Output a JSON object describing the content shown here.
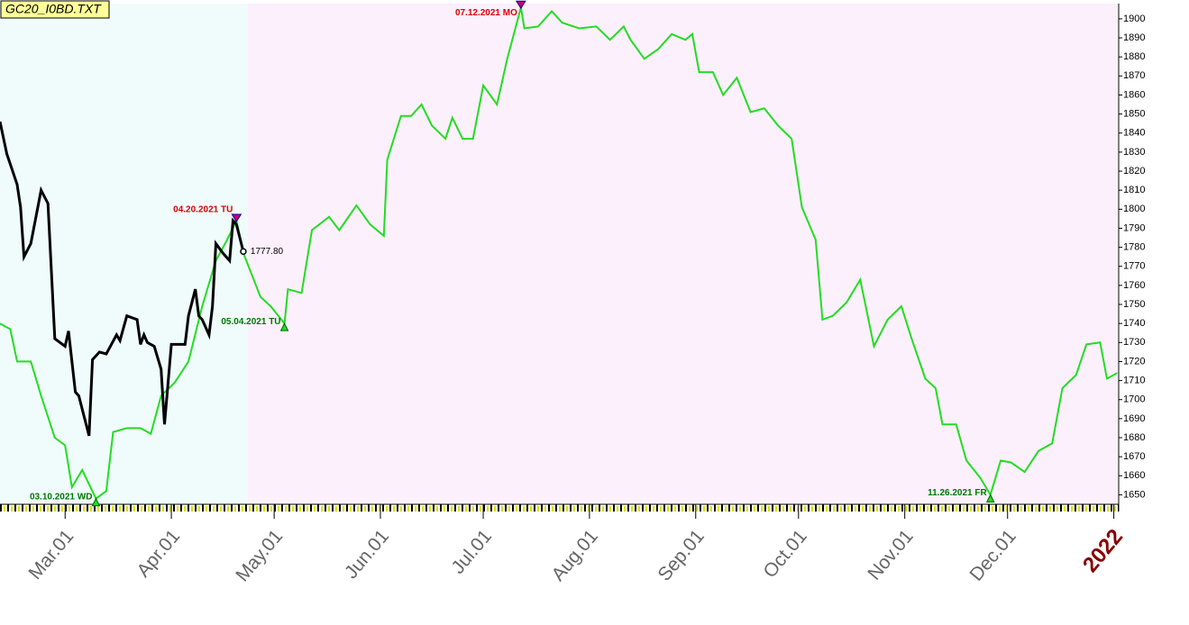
{
  "chart_data": {
    "type": "line",
    "title": "GC20_I0BD.TXT",
    "xlim": [
      "2021-02-10",
      "2022-01-04"
    ],
    "ylim": [
      1645,
      1908
    ],
    "yticks": [
      1650,
      1660,
      1670,
      1680,
      1690,
      1700,
      1710,
      1720,
      1730,
      1740,
      1750,
      1760,
      1770,
      1780,
      1790,
      1800,
      1810,
      1820,
      1830,
      1840,
      1850,
      1860,
      1870,
      1880,
      1890,
      1900
    ],
    "xticks": [
      {
        "value": "2021-03-01",
        "label": "Mar.01"
      },
      {
        "value": "2021-04-01",
        "label": "Apr.01"
      },
      {
        "value": "2021-05-01",
        "label": "May.01"
      },
      {
        "value": "2021-06-01",
        "label": "Jun.01"
      },
      {
        "value": "2021-07-01",
        "label": "Jul.01"
      },
      {
        "value": "2021-08-01",
        "label": "Aug.01"
      },
      {
        "value": "2021-09-01",
        "label": "Sep.01"
      },
      {
        "value": "2021-10-01",
        "label": "Oct.01"
      },
      {
        "value": "2021-11-01",
        "label": "Nov.01"
      },
      {
        "value": "2021-12-01",
        "label": "Dec.01"
      },
      {
        "value": "2022-01-01",
        "label": "2022"
      }
    ],
    "series": [
      {
        "color": "#22dd22",
        "x": [
          "2021-02-10",
          "2021-02-13",
          "2021-02-15",
          "2021-02-19",
          "2021-02-22",
          "2021-02-26",
          "2021-03-01",
          "2021-03-03",
          "2021-03-06",
          "2021-03-10",
          "2021-03-13",
          "2021-03-15",
          "2021-03-19",
          "2021-03-23",
          "2021-03-26",
          "2021-03-29",
          "2021-04-02",
          "2021-04-06",
          "2021-04-10",
          "2021-04-14",
          "2021-04-17",
          "2021-04-20",
          "2021-04-22",
          "2021-04-27",
          "2021-04-30",
          "2021-05-04",
          "2021-05-05",
          "2021-05-09",
          "2021-05-12",
          "2021-05-17",
          "2021-05-20",
          "2021-05-25",
          "2021-05-29",
          "2021-06-02",
          "2021-06-03",
          "2021-06-07",
          "2021-06-10",
          "2021-06-13",
          "2021-06-16",
          "2021-06-20",
          "2021-06-22",
          "2021-06-25",
          "2021-06-28",
          "2021-07-01",
          "2021-07-05",
          "2021-07-08",
          "2021-07-12",
          "2021-07-13",
          "2021-07-17",
          "2021-07-21",
          "2021-07-24",
          "2021-07-29",
          "2021-08-03",
          "2021-08-07",
          "2021-08-11",
          "2021-08-13",
          "2021-08-17",
          "2021-08-21",
          "2021-08-25",
          "2021-08-29",
          "2021-08-31",
          "2021-09-02",
          "2021-09-06",
          "2021-09-09",
          "2021-09-13",
          "2021-09-17",
          "2021-09-21",
          "2021-09-25",
          "2021-09-29",
          "2021-10-02",
          "2021-10-06",
          "2021-10-08",
          "2021-10-11",
          "2021-10-15",
          "2021-10-19",
          "2021-10-23",
          "2021-10-27",
          "2021-10-31",
          "2021-11-03",
          "2021-11-07",
          "2021-11-10",
          "2021-11-12",
          "2021-11-16",
          "2021-11-19",
          "2021-11-23",
          "2021-11-26",
          "2021-11-29",
          "2021-12-02",
          "2021-12-06",
          "2021-12-10",
          "2021-12-14",
          "2021-12-17",
          "2021-12-21",
          "2021-12-24",
          "2021-12-28",
          "2021-12-30",
          "2022-01-02"
        ],
        "values": [
          1740,
          1737,
          1720,
          1720,
          1702,
          1680,
          1676,
          1654,
          1663,
          1648,
          1652,
          1683,
          1685,
          1685,
          1682,
          1702,
          1709,
          1720,
          1749,
          1773,
          1783,
          1794,
          1777,
          1754,
          1749,
          1740,
          1758,
          1756,
          1789,
          1796,
          1789,
          1802,
          1792,
          1786,
          1826,
          1849,
          1849,
          1855,
          1844,
          1837,
          1848,
          1837,
          1837,
          1865,
          1855,
          1879,
          1906,
          1895,
          1896,
          1904,
          1898,
          1895,
          1896,
          1889,
          1896,
          1889,
          1879,
          1884,
          1892,
          1889,
          1892,
          1872,
          1872,
          1860,
          1869,
          1851,
          1853,
          1844,
          1837,
          1801,
          1784,
          1742,
          1744,
          1751,
          1763,
          1728,
          1742,
          1749,
          1732,
          1711,
          1706,
          1687,
          1687,
          1668,
          1659,
          1650,
          1668,
          1667,
          1662,
          1673,
          1677,
          1706,
          1713,
          1729,
          1730,
          1711,
          1714
        ]
      },
      {
        "color": "#000000",
        "x": [
          "2021-02-10",
          "2021-02-12",
          "2021-02-15",
          "2021-02-16",
          "2021-02-17",
          "2021-02-19",
          "2021-02-22",
          "2021-02-24",
          "2021-02-26",
          "2021-03-01",
          "2021-03-02",
          "2021-03-04",
          "2021-03-05",
          "2021-03-08",
          "2021-03-09",
          "2021-03-11",
          "2021-03-13",
          "2021-03-16",
          "2021-03-17",
          "2021-03-19",
          "2021-03-22",
          "2021-03-23",
          "2021-03-24",
          "2021-03-25",
          "2021-03-27",
          "2021-03-29",
          "2021-03-30",
          "2021-04-01",
          "2021-04-04",
          "2021-04-05",
          "2021-04-06",
          "2021-04-08",
          "2021-04-09",
          "2021-04-10",
          "2021-04-12",
          "2021-04-13",
          "2021-04-14",
          "2021-04-16",
          "2021-04-18",
          "2021-04-19",
          "2021-04-20",
          "2021-04-22"
        ],
        "values": [
          1846,
          1829,
          1813,
          1801,
          1775,
          1782,
          1810,
          1803,
          1732,
          1728,
          1736,
          1704,
          1702,
          1681,
          1721,
          1725,
          1724,
          1734,
          1731,
          1744,
          1742,
          1729,
          1734,
          1730,
          1728,
          1716,
          1687,
          1729,
          1729,
          1729,
          1744,
          1758,
          1744,
          1742,
          1734,
          1749,
          1782,
          1777,
          1773,
          1794,
          1792,
          1777.8
        ]
      }
    ],
    "annotations": [
      {
        "text": "03.10.2021 WD",
        "x": "2021-03-10",
        "y": 1648,
        "color": "#007700",
        "marker": "up"
      },
      {
        "text": "04.20.2021 TU",
        "x": "2021-04-20",
        "y": 1794,
        "color": "#dd0000",
        "marker": "down"
      },
      {
        "text": "05.04.2021 TU",
        "x": "2021-05-04",
        "y": 1740,
        "color": "#007700",
        "marker": "up"
      },
      {
        "text": "07.12.2021 MO",
        "x": "2021-07-12",
        "y": 1906,
        "color": "#dd0000",
        "marker": "down"
      },
      {
        "text": "11.26.2021 FR",
        "x": "2021-11-26",
        "y": 1650,
        "color": "#007700",
        "marker": "up"
      },
      {
        "text": "1777.80",
        "x": "2021-04-22",
        "y": 1777.8,
        "color": "#000000",
        "marker": "circle"
      }
    ]
  }
}
